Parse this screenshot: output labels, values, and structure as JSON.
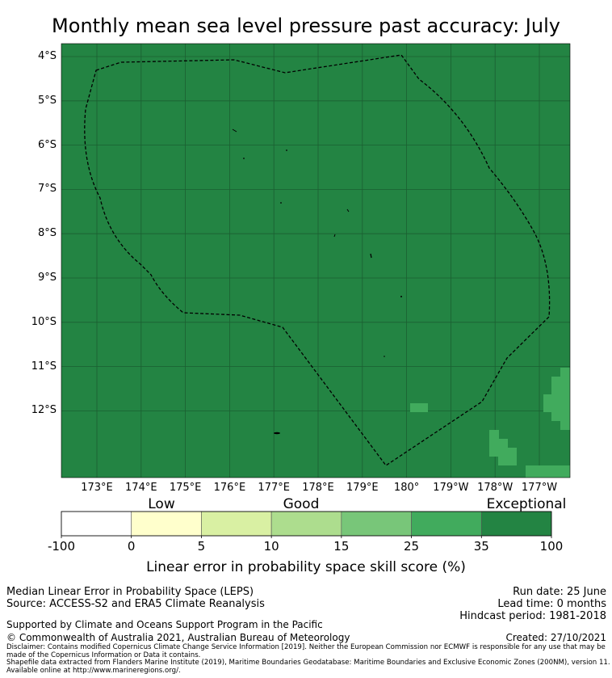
{
  "title": "Monthly mean sea level pressure past accuracy: July",
  "map": {
    "fill_color": "#238443",
    "lat_labels": [
      "4°S",
      "5°S",
      "6°S",
      "7°S",
      "8°S",
      "9°S",
      "10°S",
      "11°S",
      "12°S"
    ],
    "lon_labels": [
      "173°E",
      "174°E",
      "175°E",
      "176°E",
      "177°E",
      "178°E",
      "179°E",
      "180°",
      "179°W",
      "178°W",
      "177°W"
    ],
    "boundary_style": "dashed",
    "grid": true
  },
  "legend": {
    "categories": [
      "Low",
      "Good",
      "Exceptional"
    ],
    "ticks": [
      "-100",
      "0",
      "5",
      "10",
      "15",
      "25",
      "35",
      "100"
    ],
    "colors": [
      "#ffffff",
      "#ffffcc",
      "#d9f0a3",
      "#addd8e",
      "#78c679",
      "#41ab5d",
      "#238443"
    ],
    "label": "Linear error in probability space skill score (%)"
  },
  "footer": {
    "line1": "Median Linear Error in Probability Space (LEPS)",
    "line2": "Source: ACCESS-S2 and ERA5 Climate Reanalysis",
    "run_date": "Run date: 25 June",
    "lead_time": "Lead time: 0 months",
    "hindcast": "Hindcast period: 1981-2018",
    "supported": "Supported by Climate and Oceans Support Program in the Pacific",
    "copyright": "© Commonwealth of Australia 2021, Australian Bureau of Meteorology",
    "created": "Created: 27/10/2021",
    "disclaimer": "Disclaimer: Contains modified Copernicus Climate Change Service Information [2019]. Neither the European Commission nor ECMWF is responsible for any use that may be made of the Copernicus Information or Data it contains.",
    "shapefile": "Shapefile data extracted from Flanders Marine Institute (2019), Maritime Boundaries Geodatabase: Maritime Boundaries and Exclusive Economic Zones (200NM), version 11. Available online at http://www.marineregions.org/."
  }
}
